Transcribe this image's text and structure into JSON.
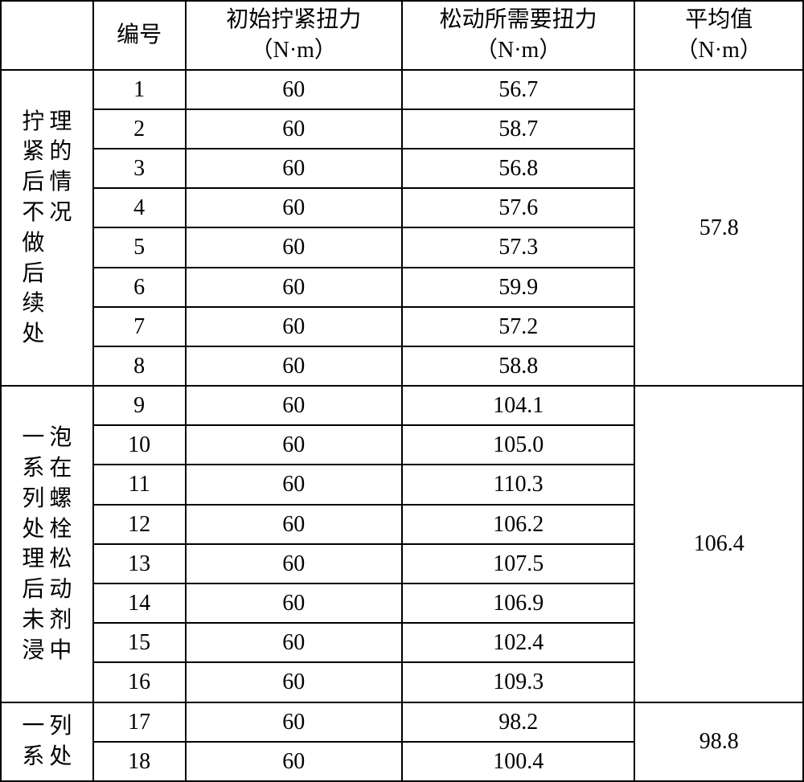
{
  "columns": {
    "blank": "",
    "id": "编号",
    "initial_torque_line1": "初始拧紧扭力",
    "initial_torque_line2": "（N·m）",
    "loosen_torque_line1": "松动所需要扭力",
    "loosen_torque_line2": "（N·m）",
    "average_line1": "平均值",
    "average_line2": "（N·m）"
  },
  "groups": [
    {
      "label": "拧紧后不做后续处理的情况",
      "average": "57.8",
      "rows": [
        {
          "id": "1",
          "initial": "60",
          "loosen": "56.7"
        },
        {
          "id": "2",
          "initial": "60",
          "loosen": "58.7"
        },
        {
          "id": "3",
          "initial": "60",
          "loosen": "56.8"
        },
        {
          "id": "4",
          "initial": "60",
          "loosen": "57.6"
        },
        {
          "id": "5",
          "initial": "60",
          "loosen": "57.3"
        },
        {
          "id": "6",
          "initial": "60",
          "loosen": "59.9"
        },
        {
          "id": "7",
          "initial": "60",
          "loosen": "57.2"
        },
        {
          "id": "8",
          "initial": "60",
          "loosen": "58.8"
        }
      ]
    },
    {
      "label": "一系列处理后未浸泡在螺栓松动剂中",
      "average": "106.4",
      "rows": [
        {
          "id": "9",
          "initial": "60",
          "loosen": "104.1"
        },
        {
          "id": "10",
          "initial": "60",
          "loosen": "105.0"
        },
        {
          "id": "11",
          "initial": "60",
          "loosen": "110.3"
        },
        {
          "id": "12",
          "initial": "60",
          "loosen": "106.2"
        },
        {
          "id": "13",
          "initial": "60",
          "loosen": "107.5"
        },
        {
          "id": "14",
          "initial": "60",
          "loosen": "106.9"
        },
        {
          "id": "15",
          "initial": "60",
          "loosen": "102.4"
        },
        {
          "id": "16",
          "initial": "60",
          "loosen": "109.3"
        }
      ]
    },
    {
      "label": "一系列处",
      "average": "98.8",
      "rows": [
        {
          "id": "17",
          "initial": "60",
          "loosen": "98.2"
        },
        {
          "id": "18",
          "initial": "60",
          "loosen": "100.4"
        }
      ]
    }
  ],
  "style": {
    "border_color": "#000000",
    "background_color": "#ffffff",
    "text_color": "#000000",
    "font_size_body": 28,
    "font_size_header": 28
  }
}
